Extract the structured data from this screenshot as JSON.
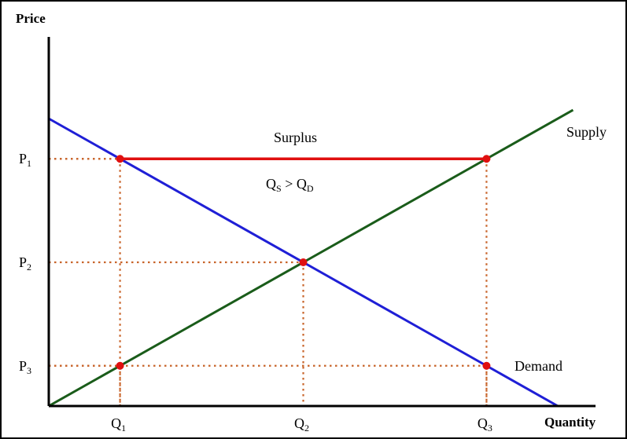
{
  "chart_data": {
    "type": "line",
    "title": "",
    "xlabel": "Quantity",
    "ylabel": "Price",
    "xlim": [
      0,
      10
    ],
    "ylim": [
      0,
      10
    ],
    "grid": false,
    "series": [
      {
        "name": "Supply",
        "color": "#1a5c1a",
        "x": [
          0,
          10.3
        ],
        "y": [
          0,
          10.3
        ]
      },
      {
        "name": "Demand",
        "color": "#1f1fd6",
        "x": [
          0,
          10
        ],
        "y": [
          10,
          0
        ]
      }
    ],
    "price_ticks": [
      {
        "main": "P",
        "sub": "1",
        "value": 8.6
      },
      {
        "main": "P",
        "sub": "2",
        "value": 5.0
      },
      {
        "main": "P",
        "sub": "3",
        "value": 1.4
      }
    ],
    "quantity_ticks": [
      {
        "main": "Q",
        "sub": "1",
        "value": 1.4
      },
      {
        "main": "Q",
        "sub": "2",
        "value": 5.0
      },
      {
        "main": "Q",
        "sub": "3",
        "value": 8.6
      }
    ],
    "points": [
      {
        "x": 1.4,
        "y": 8.6
      },
      {
        "x": 8.6,
        "y": 8.6
      },
      {
        "x": 5.0,
        "y": 5.0
      },
      {
        "x": 1.4,
        "y": 1.4
      },
      {
        "x": 8.6,
        "y": 1.4
      }
    ],
    "surplus": {
      "label": "Surplus",
      "price": 8.6,
      "from_q": 1.4,
      "to_q": 8.6,
      "color": "#e01010",
      "condition": {
        "q1": "Q",
        "sub1": "S",
        "op": " > ",
        "q2": "Q",
        "sub2": "D"
      }
    },
    "guide_color": "#c8642a",
    "point_color": "#e01010"
  }
}
